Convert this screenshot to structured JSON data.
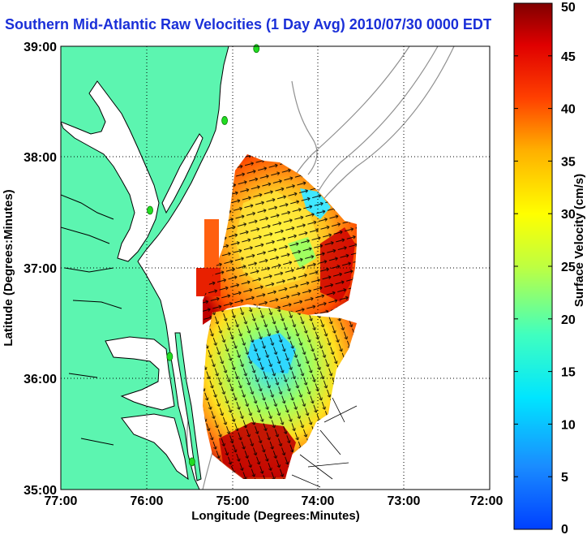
{
  "title": "Southern Mid-Atlantic Raw Velocities (1 Day Avg) 2010/07/30 0000 EDT",
  "map": {
    "xlabel": "Longitude (Degrees:Minutes)",
    "ylabel": "Latitude (Degrees:Minutes)",
    "x_ticks": [
      "77:00",
      "76:00",
      "75:00",
      "74:00",
      "73:00",
      "72:00"
    ],
    "y_ticks": [
      "39:00",
      "38:00",
      "37:00",
      "36:00",
      "35:00"
    ],
    "xlim_west_deg": [
      77,
      72
    ],
    "ylim_north_deg": [
      35,
      39
    ],
    "grid": "dotted",
    "land_color": "#5cf5b0",
    "station_color": "#22dd22"
  },
  "colorbar": {
    "label": "Surface Velocity (cm/s)",
    "ticks": [
      "0",
      "5",
      "10",
      "15",
      "20",
      "25",
      "30",
      "35",
      "40",
      "45",
      "50"
    ],
    "min": 0,
    "max": 50,
    "colormap": "jet"
  },
  "stations": [
    {
      "lon_w": 74.72,
      "lat": 38.98
    },
    {
      "lon_w": 75.09,
      "lat": 38.33
    },
    {
      "lon_w": 75.96,
      "lat": 37.52
    },
    {
      "lon_w": 75.73,
      "lat": 36.2
    },
    {
      "lon_w": 75.47,
      "lat": 35.25
    }
  ]
}
